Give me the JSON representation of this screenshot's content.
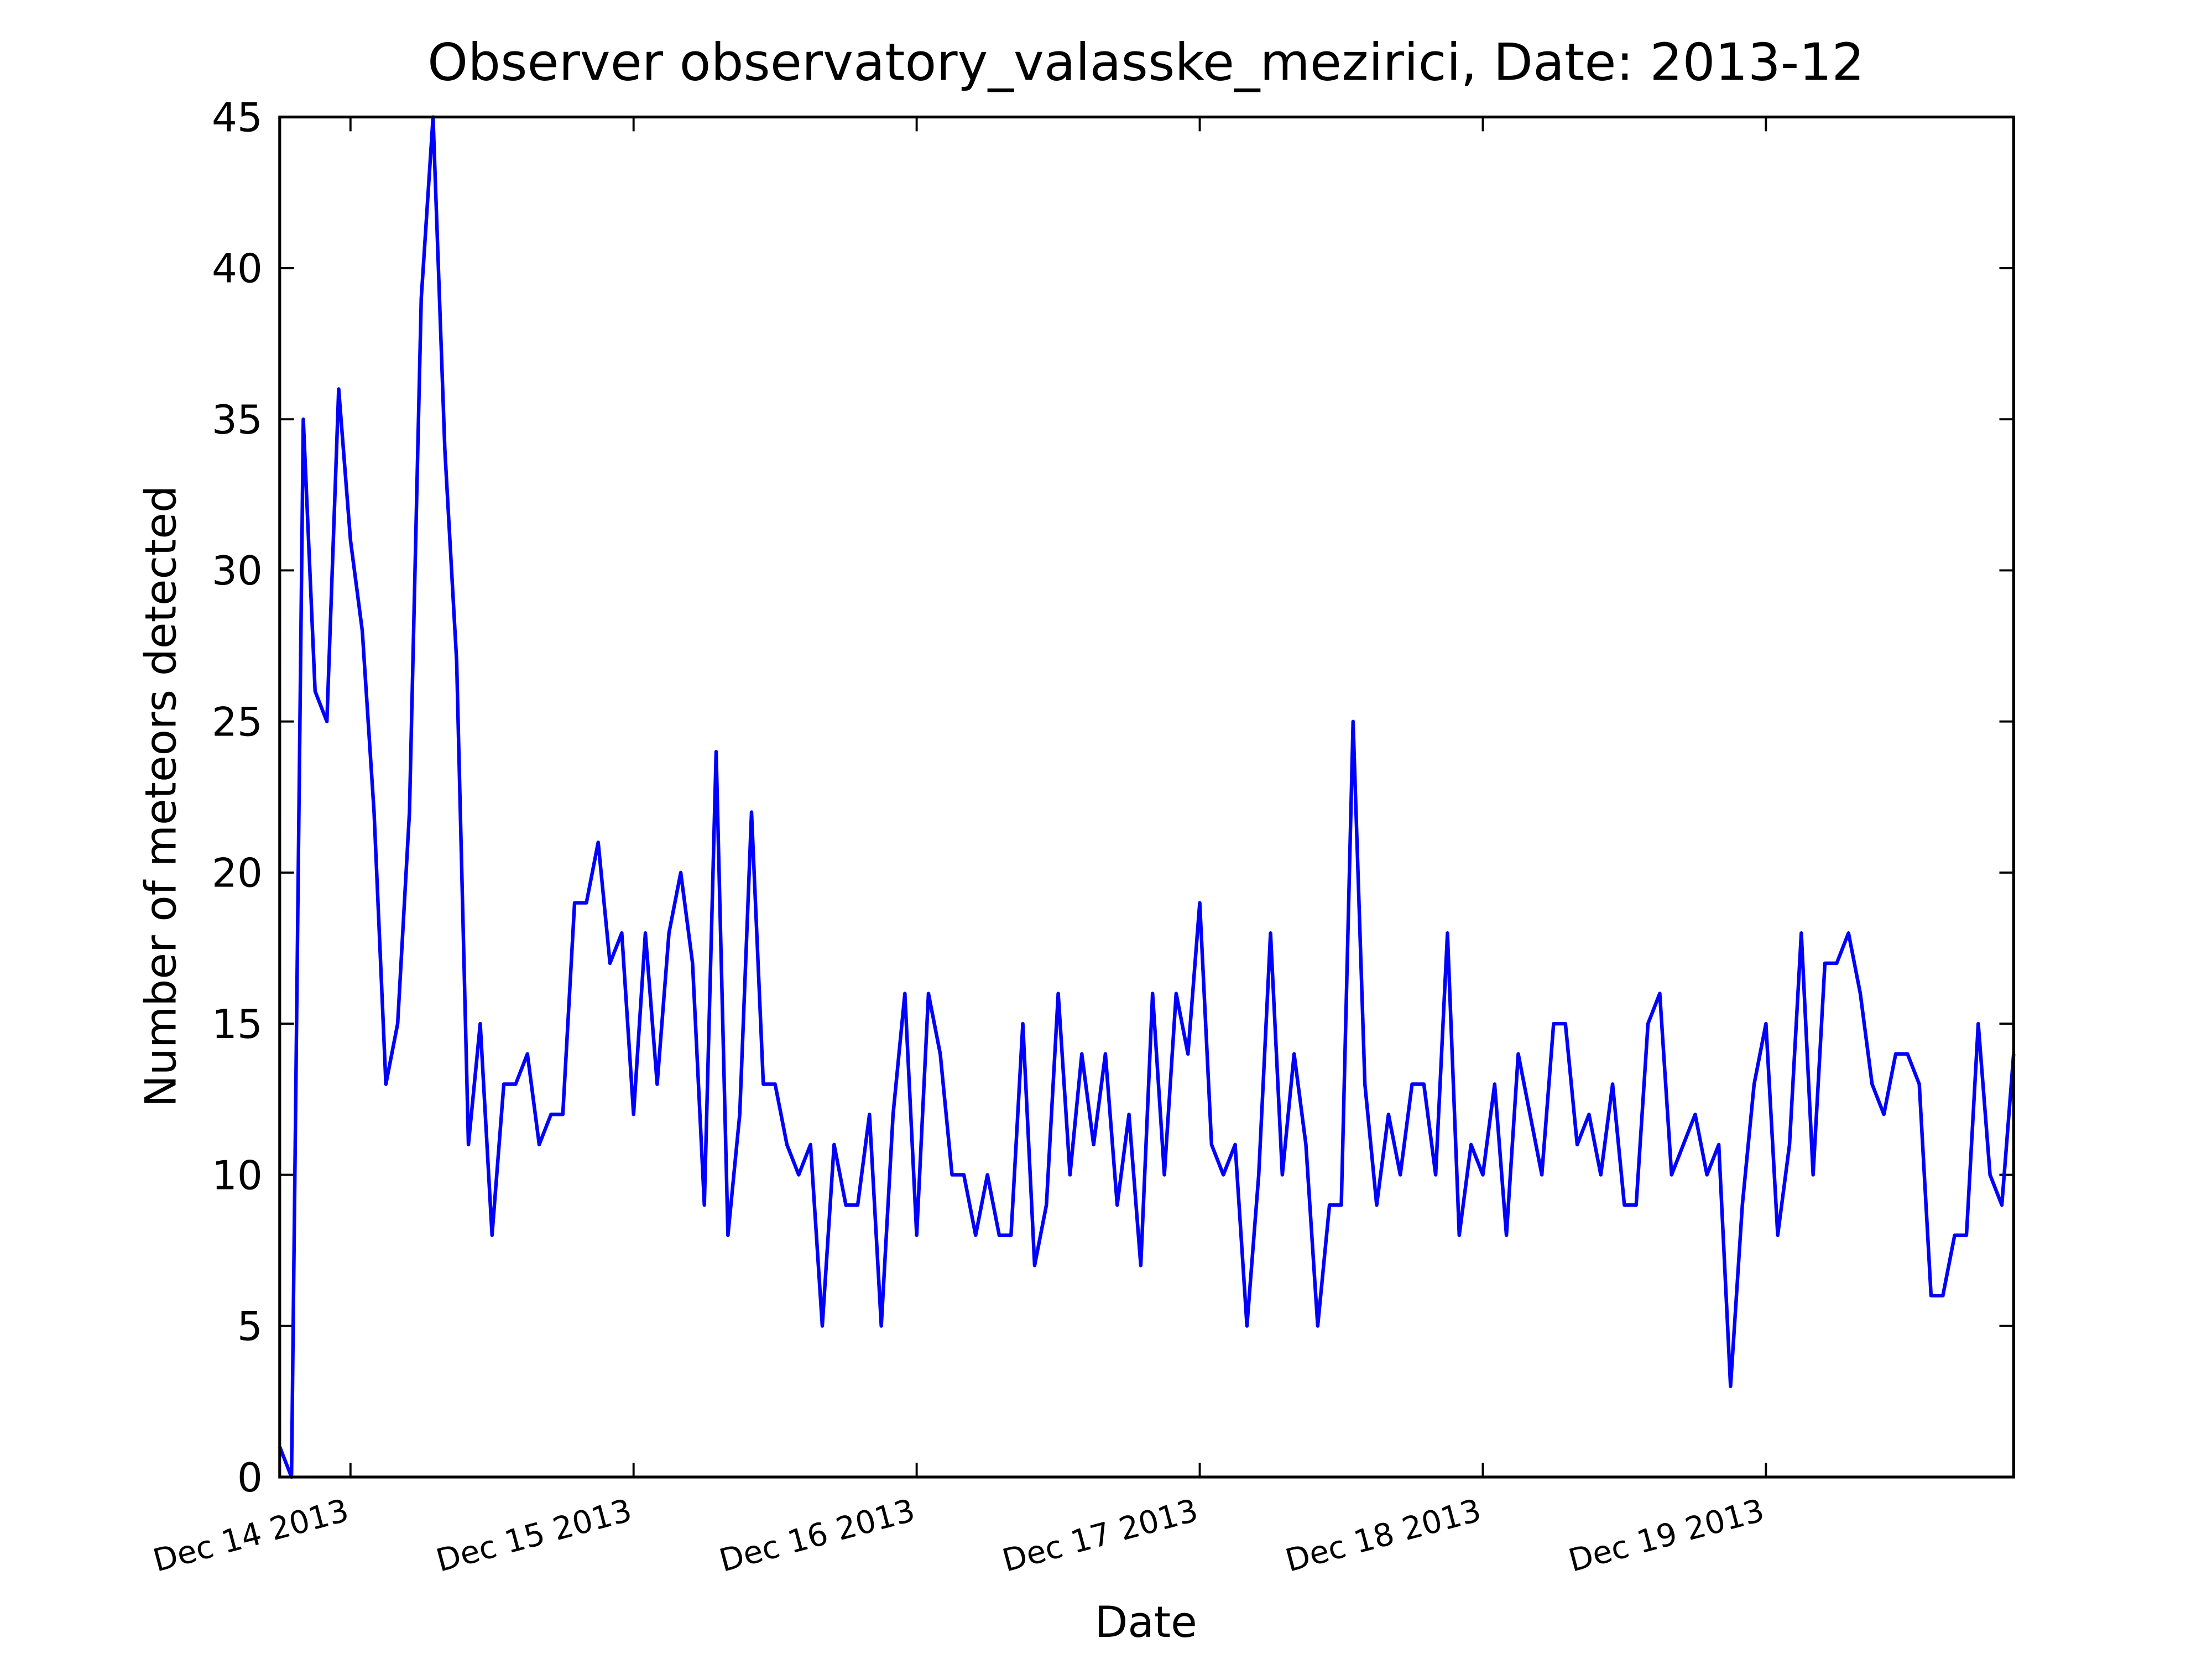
{
  "chart_data": {
    "type": "line",
    "title": "Observer observatory_valasske_mezirici, Date: 2013-12",
    "x_label": "Date",
    "y_label": "Number of meteors detected",
    "x": [
      306,
      307,
      308,
      309,
      310,
      311,
      312,
      313,
      314,
      315,
      316,
      317,
      318,
      319,
      320,
      321,
      322,
      323,
      324,
      325,
      326,
      327,
      328,
      329,
      330,
      331,
      332,
      333,
      334,
      335,
      336,
      337,
      338,
      339,
      340,
      341,
      342,
      343,
      344,
      345,
      346,
      347,
      348,
      349,
      350,
      351,
      352,
      353,
      354,
      355,
      356,
      357,
      358,
      359,
      360,
      361,
      362,
      363,
      364,
      365,
      366,
      367,
      368,
      369,
      370,
      371,
      372,
      373,
      374,
      375,
      376,
      377,
      378,
      379,
      380,
      381,
      382,
      383,
      384,
      385,
      386,
      387,
      388,
      389,
      390,
      391,
      392,
      393,
      394,
      395,
      396,
      397,
      398,
      399,
      400,
      401,
      402,
      403,
      404,
      405,
      406,
      407,
      408,
      409,
      410,
      411,
      412,
      413,
      414,
      415,
      416,
      417,
      418,
      419,
      420,
      421,
      422,
      423,
      424,
      425,
      426,
      427,
      428,
      429,
      430,
      431,
      432,
      433,
      434,
      435,
      436,
      437,
      438,
      439,
      440,
      441,
      442,
      443,
      444,
      445,
      446,
      447,
      448,
      449,
      450,
      451,
      452,
      453
    ],
    "series": [
      {
        "color": "#0000ff",
        "values": [
          1,
          0,
          35,
          26,
          25,
          36,
          31,
          28,
          22,
          13,
          15,
          22,
          39,
          45,
          34,
          27,
          11,
          15,
          8,
          13,
          13,
          14,
          11,
          12,
          12,
          19,
          19,
          21,
          17,
          18,
          12,
          18,
          13,
          18,
          20,
          17,
          9,
          24,
          8,
          12,
          22,
          13,
          13,
          11,
          10,
          11,
          5,
          11,
          9,
          9,
          12,
          5,
          12,
          16,
          8,
          16,
          14,
          10,
          10,
          8,
          10,
          8,
          8,
          15,
          7,
          9,
          16,
          10,
          14,
          11,
          14,
          9,
          12,
          7,
          16,
          10,
          16,
          14,
          19,
          11,
          10,
          11,
          5,
          10,
          18,
          10,
          14,
          11,
          5,
          9,
          9,
          25,
          13,
          9,
          12,
          10,
          13,
          13,
          10,
          18,
          8,
          11,
          10,
          13,
          8,
          14,
          12,
          10,
          15,
          15,
          11,
          12,
          10,
          13,
          9,
          9,
          15,
          16,
          10,
          11,
          12,
          10,
          11,
          3,
          9,
          13,
          15,
          8,
          11,
          18,
          10,
          17,
          17,
          18,
          16,
          13,
          12,
          14,
          14,
          13,
          6,
          6,
          8,
          8,
          15,
          10,
          9,
          14
        ]
      }
    ],
    "xlim": [
      306,
      453
    ],
    "xticks": [
      {
        "value": 312,
        "label": "Dec 14 2013"
      },
      {
        "value": 336,
        "label": "Dec 15 2013"
      },
      {
        "value": 360,
        "label": "Dec 16 2013"
      },
      {
        "value": 384,
        "label": "Dec 17 2013"
      },
      {
        "value": 408,
        "label": "Dec 18 2013"
      },
      {
        "value": 432,
        "label": "Dec 19 2013"
      }
    ],
    "ylim": [
      0,
      45
    ],
    "yticks": [
      0,
      5,
      10,
      15,
      20,
      25,
      30,
      35,
      40,
      45
    ],
    "grid": false
  }
}
